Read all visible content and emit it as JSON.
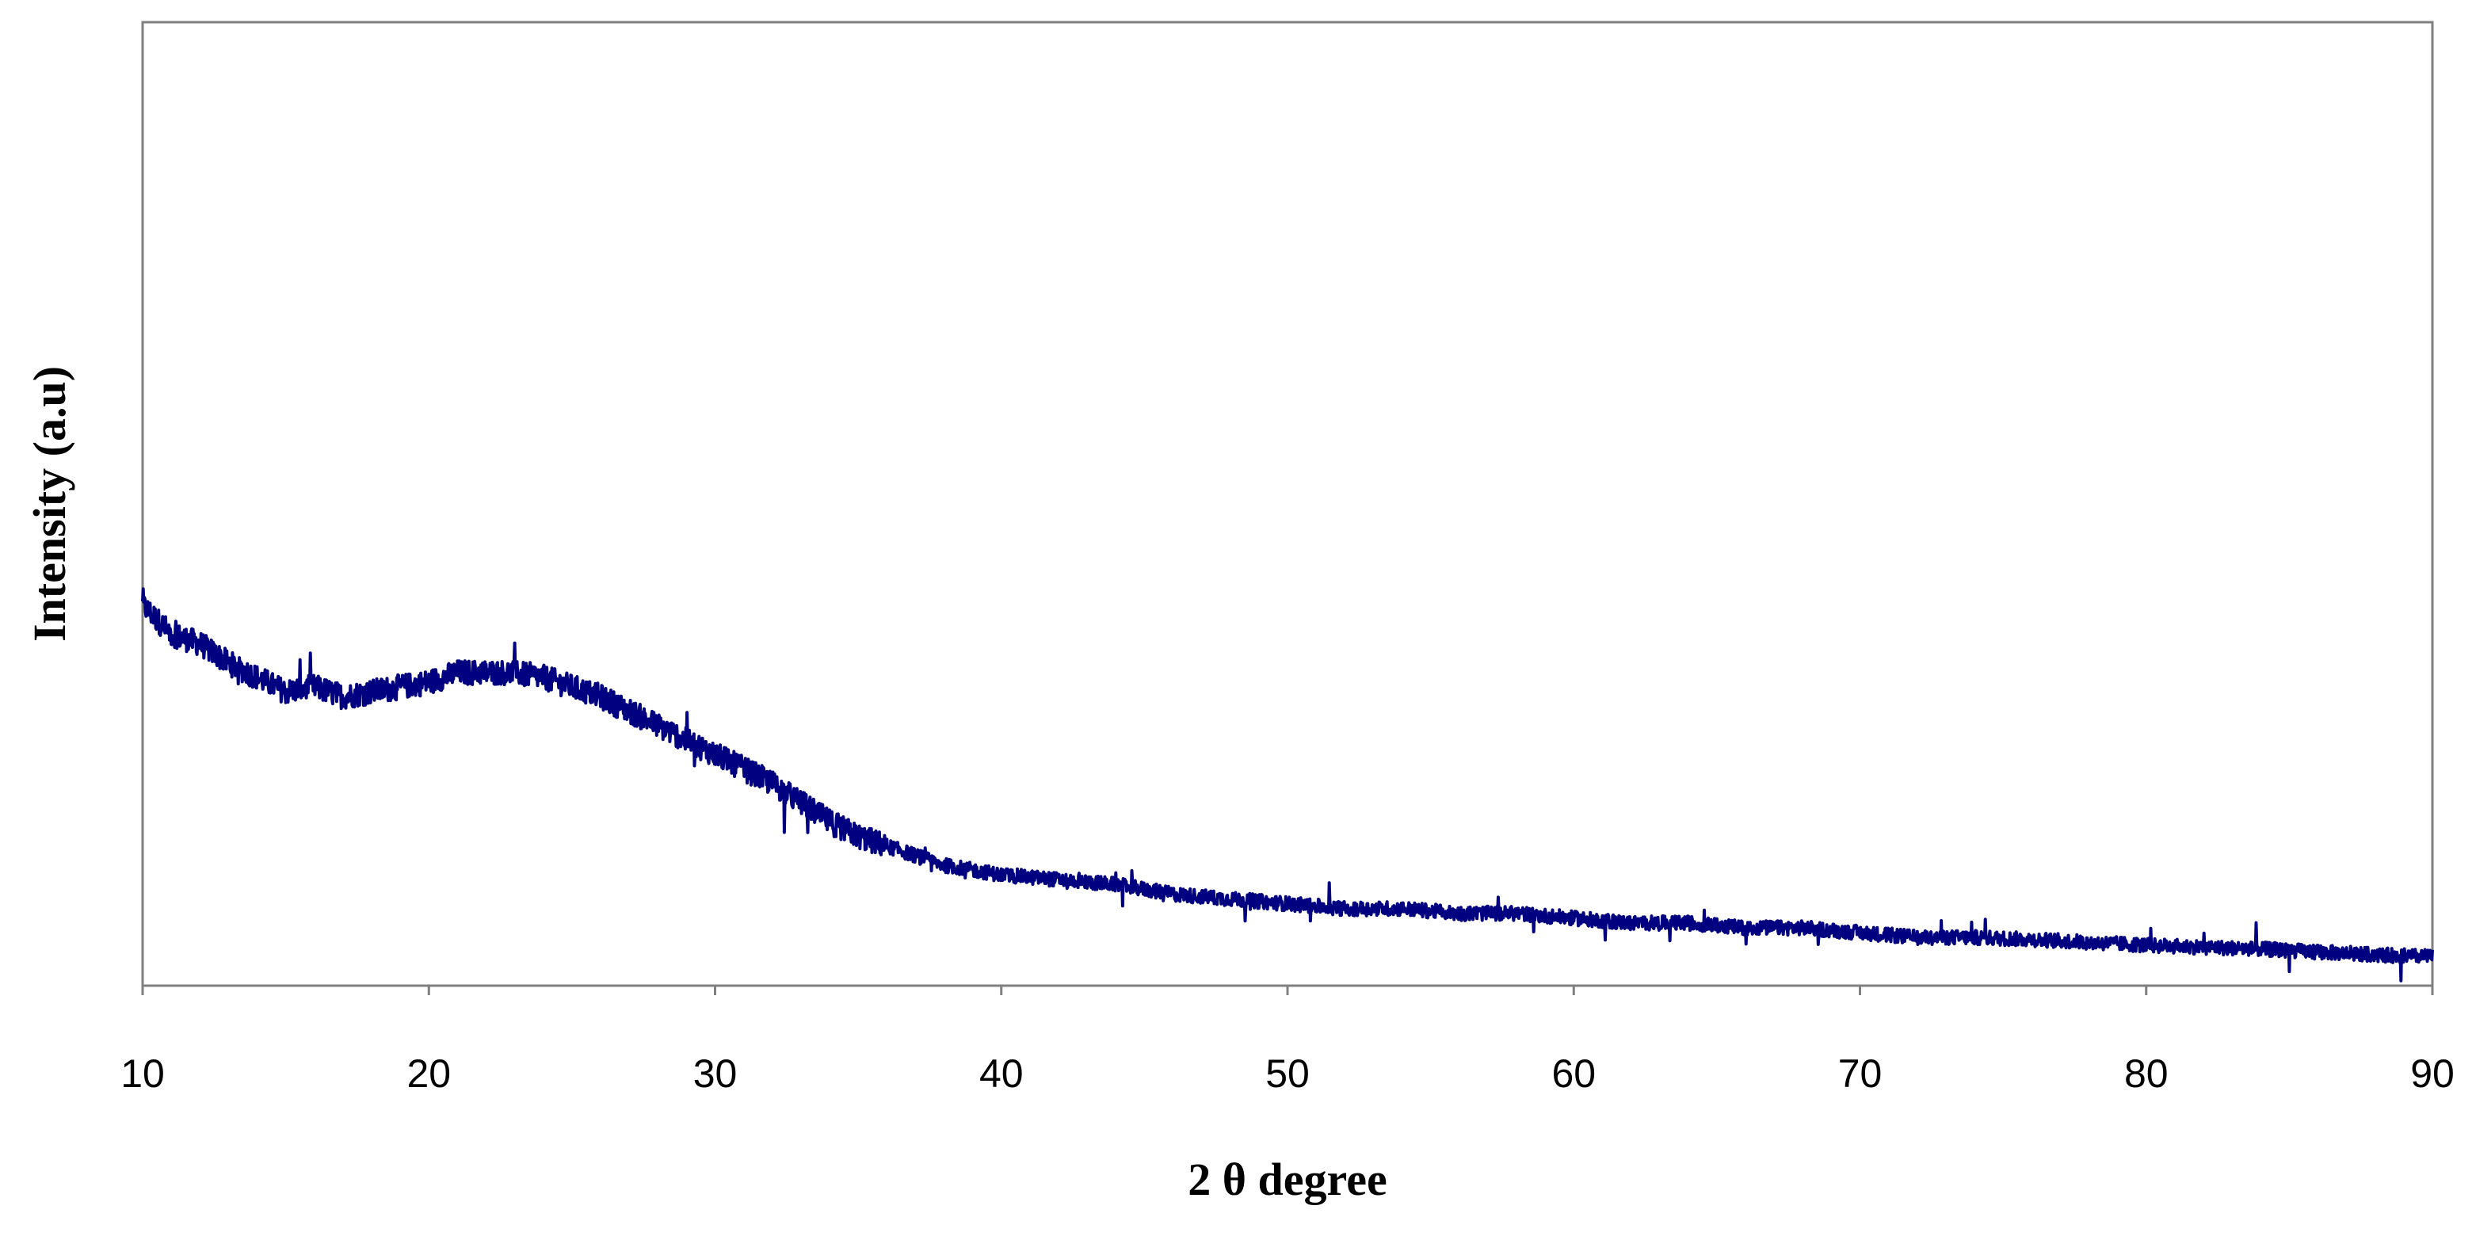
{
  "chart_data": {
    "type": "line",
    "xlabel": "2 θ degree",
    "ylabel": "Intensity (a.u)",
    "xlim": [
      10,
      90
    ],
    "ylim": [
      0,
      100
    ],
    "x_ticks": [
      "10",
      "20",
      "30",
      "40",
      "50",
      "60",
      "70",
      "80",
      "90"
    ],
    "y_ticks": [],
    "grid": false,
    "legend": "none",
    "series": [
      {
        "color": "#000080",
        "x": [
          10,
          11,
          12,
          13,
          14,
          15,
          16,
          17,
          18,
          19,
          20,
          21,
          22,
          23,
          24,
          25,
          26,
          27,
          28,
          29,
          30,
          31,
          32,
          33,
          34,
          35,
          36,
          37,
          38,
          39,
          40,
          42,
          44,
          46,
          48,
          50,
          52,
          54,
          56,
          58,
          60,
          62,
          64,
          66,
          68,
          70,
          72,
          74,
          76,
          78,
          80,
          82,
          84,
          86,
          88,
          90
        ],
        "y": [
          39.5,
          36.5,
          35.5,
          33.5,
          32.0,
          30.5,
          31.0,
          30.0,
          30.5,
          31.0,
          31.5,
          32.5,
          32.5,
          32.5,
          32.0,
          31.0,
          30.0,
          28.5,
          27.0,
          25.5,
          24.0,
          22.5,
          21.0,
          19.0,
          17.0,
          15.5,
          14.5,
          13.5,
          12.5,
          12.0,
          11.5,
          11.0,
          10.5,
          9.5,
          9.0,
          8.5,
          8.0,
          8.0,
          7.5,
          7.5,
          7.0,
          6.5,
          6.5,
          6.0,
          6.0,
          5.5,
          5.0,
          5.0,
          4.8,
          4.5,
          4.2,
          4.0,
          3.8,
          3.5,
          3.2,
          3.0
        ]
      }
    ]
  }
}
